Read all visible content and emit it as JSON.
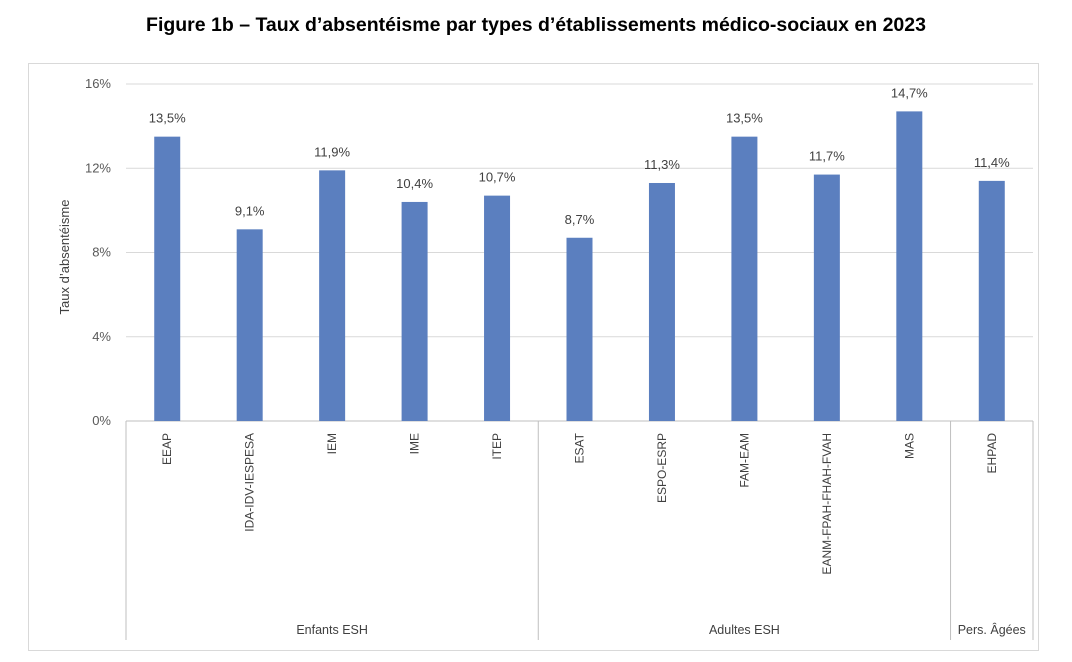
{
  "title": "Figure 1b – Taux d’absentéisme par types d’établissements médico-sociaux en 2023",
  "chart_data": {
    "type": "bar",
    "ylabel": "Taux d’absentéisme",
    "xlabel": "",
    "ylim": [
      0,
      16
    ],
    "y_ticks": [
      0,
      4,
      8,
      12,
      16
    ],
    "y_tick_labels": [
      "0%",
      "4%",
      "8%",
      "12%",
      "16%"
    ],
    "grid": true,
    "bar_color": "#5b7fbf",
    "categories": [
      "EEAP",
      "IDA-IDV-IESPESA",
      "IEM",
      "IME",
      "ITEP",
      "ESAT",
      "ESPO-ESRP",
      "FAM-EAM",
      "EANM-FPAH-FHAH-FVAH",
      "MAS",
      "EHPAD"
    ],
    "values": [
      13.5,
      9.1,
      11.9,
      10.4,
      10.7,
      8.7,
      11.3,
      13.5,
      11.7,
      14.7,
      11.4
    ],
    "value_labels": [
      "13,5%",
      "9,1%",
      "11,9%",
      "10,4%",
      "10,7%",
      "8,7%",
      "11,3%",
      "13,5%",
      "11,7%",
      "14,7%",
      "11,4%"
    ],
    "groups": [
      {
        "name": "Enfants ESH",
        "start": 0,
        "end": 4
      },
      {
        "name": "Adultes ESH",
        "start": 5,
        "end": 9
      },
      {
        "name": "Pers. Âgées",
        "start": 10,
        "end": 10
      }
    ]
  }
}
